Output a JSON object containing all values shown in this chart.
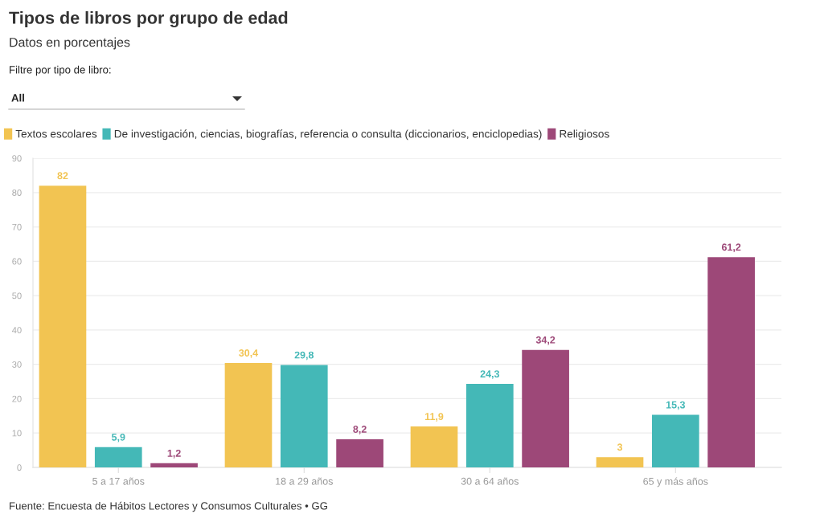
{
  "chart_data": {
    "type": "bar",
    "title": "Tipos de libros por grupo de edad",
    "subtitle": "Datos en porcentajes",
    "annotations": [
      "Filtre por tipo de libro:",
      "All",
      "Fuente: Encuesta de Hábitos Lectores y Consumos Culturales • GG"
    ],
    "categories": [
      "5 a 17 años",
      "18 a 29 años",
      "30 a 64 años",
      "65 y más años"
    ],
    "series": [
      {
        "name": "Textos escolares",
        "color": "#f2c452",
        "values": [
          82,
          30.4,
          11.9,
          3
        ],
        "value_labels": [
          "82",
          "30,4",
          "11,9",
          "3"
        ]
      },
      {
        "name": "De investigación, ciencias, biografías, referencia o consulta (diccionarios, enciclopedias)",
        "color": "#44b8b7",
        "values": [
          5.9,
          29.8,
          24.3,
          15.3
        ],
        "value_labels": [
          "5,9",
          "29,8",
          "24,3",
          "15,3"
        ]
      },
      {
        "name": "Religiosos",
        "color": "#9d4878",
        "values": [
          1.2,
          8.2,
          34.2,
          61.2
        ],
        "value_labels": [
          "1,2",
          "8,2",
          "34,2",
          "61,2"
        ]
      }
    ],
    "ylim": [
      0,
      90
    ],
    "yticks": [
      0,
      10,
      20,
      30,
      40,
      50,
      60,
      70,
      80,
      90
    ],
    "grid": "y",
    "legend": "top left"
  }
}
